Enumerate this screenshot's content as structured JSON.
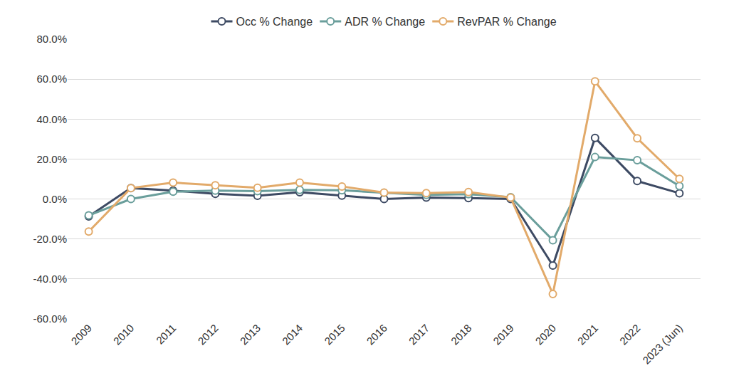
{
  "chart_data": {
    "type": "line",
    "categories": [
      "2009",
      "2010",
      "2011",
      "2012",
      "2013",
      "2014",
      "2015",
      "2016",
      "2017",
      "2018",
      "2019",
      "2020",
      "2021",
      "2022",
      "2023 (Jun)"
    ],
    "series": [
      {
        "name": "Occ % Change",
        "color": "#3d4a63",
        "marker": "circle",
        "line_style": "solid",
        "values": [
          -8.7,
          5.5,
          4.2,
          2.6,
          1.6,
          3.4,
          1.7,
          0.0,
          0.7,
          0.5,
          0.0,
          -33.3,
          30.6,
          9.0,
          2.9
        ]
      },
      {
        "name": "ADR % Change",
        "color": "#6a9e9b",
        "marker": "circle",
        "line_style": "solid",
        "values": [
          -8.2,
          0.0,
          3.7,
          4.2,
          3.9,
          4.6,
          4.4,
          3.1,
          2.1,
          2.4,
          0.9,
          -20.6,
          21.0,
          19.4,
          6.5
        ]
      },
      {
        "name": "RevPAR % Change",
        "color": "#e2aa6a",
        "marker": "circle",
        "line_style": "solid",
        "values": [
          -16.3,
          5.5,
          8.2,
          6.9,
          5.6,
          8.2,
          6.3,
          3.2,
          3.0,
          3.5,
          0.7,
          -47.5,
          58.9,
          30.4,
          10.1
        ]
      }
    ],
    "ylim": [
      -60,
      80
    ],
    "yticks": [
      {
        "value": -60,
        "label": "-60.0%"
      },
      {
        "value": -40,
        "label": "-40.0%"
      },
      {
        "value": -20,
        "label": "-20.0%"
      },
      {
        "value": 0,
        "label": "0.0%"
      },
      {
        "value": 20,
        "label": "20.0%"
      },
      {
        "value": 40,
        "label": "40.0%"
      },
      {
        "value": 60,
        "label": "60.0%"
      },
      {
        "value": 80,
        "label": "80.0%"
      }
    ],
    "grid": true,
    "legend": "top"
  }
}
